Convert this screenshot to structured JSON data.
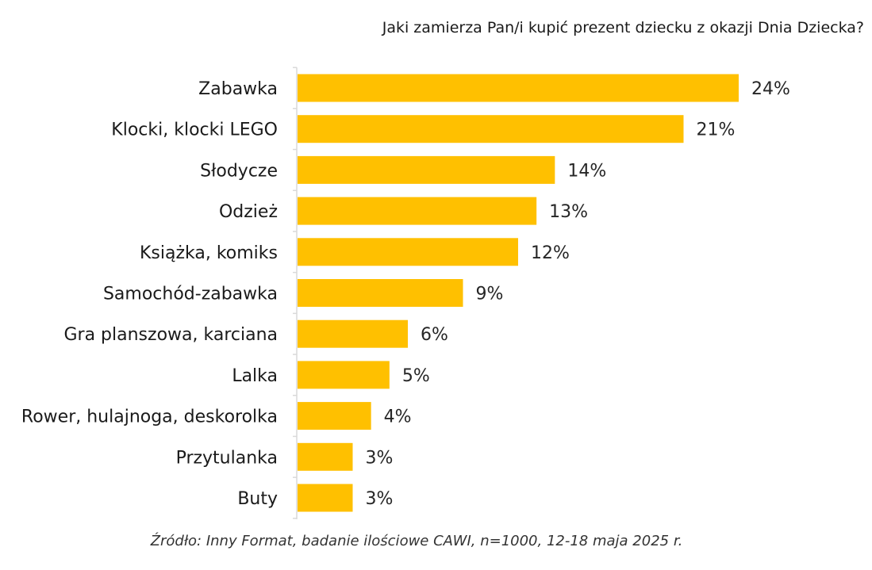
{
  "chart_data": {
    "type": "bar",
    "orientation": "horizontal",
    "title": "Jaki zamierza Pan/i kupić prezent dziecku z okazji Dnia Dziecka?",
    "categories": [
      "Zabawka",
      "Klocki, klocki LEGO",
      "Słodycze",
      "Odzież",
      "Książka, komiks",
      "Samochód-zabawka",
      "Gra planszowa, karciana",
      "Lalka",
      "Rower, hulajnoga, deskorolka",
      "Przytulanka",
      "Buty"
    ],
    "values": [
      24,
      21,
      14,
      13,
      12,
      9,
      6,
      5,
      4,
      3,
      3
    ],
    "value_labels": [
      "24%",
      "21%",
      "14%",
      "13%",
      "12%",
      "9%",
      "6%",
      "5%",
      "4%",
      "3%",
      "3%"
    ],
    "unit": "%",
    "xlim": [
      0,
      24
    ],
    "grid": false,
    "bar_color": "#FFC000"
  },
  "source": "Źródło: Inny Format, badanie ilościowe CAWI, n=1000, 12-18 maja 2025 r."
}
